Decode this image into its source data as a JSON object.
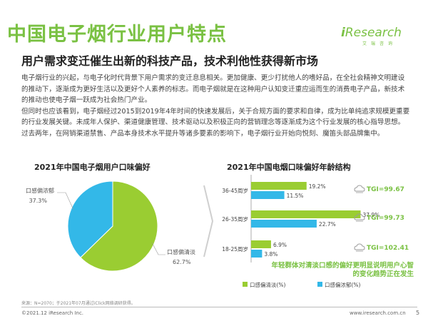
{
  "header": {
    "title": "中国电子烟行业用户特点",
    "logo_text": "Research",
    "logo_sub": "艾瑞咨询"
  },
  "subtitle": "用户需求变迁催生出新的科技产品，技术利他性获得新市场",
  "body_paragraphs": [
    "电子烟行业的兴起，与电子化时代背景下用户需求的变迁息息相关。更加健康、更少打扰他人的嗜好品，在全社会精神文明建设的推动下，逐渐成为更好生活以及更好个人素养的标志。而电子烟就是在这种用户认知变迁重应运而生的消费电子产品，新技术的推动也使电子烟一跃成为社会热门产业。",
    "但同时也应该看到，电子烟经过2015到2019年4年时间的快速发展后，关于合规方面的要求和自律，成为比单纯追求规模更重要的行业发展关键。未成年人保护、渠道健康管理、技术驱动以及积极正向的营销理念等逐渐成为这个行业发展的核心指导思想。过去两年，在网销渠道禁售、产品本身技术水平提升等诸多要素的影响下，电子烟行业开始向悦刻、魔笛头部品牌集中。"
  ],
  "colors": {
    "green": "#9acd32",
    "blue": "#33b8e8",
    "title_green": "#7ac143"
  },
  "chart_data": [
    {
      "type": "pie",
      "title": "2021年中国电子烟用户口味偏好",
      "slices": [
        {
          "name": "口感偏清淡",
          "value": 62.7,
          "label": "62.7%",
          "color": "#9acd32"
        },
        {
          "name": "口感偏浓郁",
          "value": 37.3,
          "label": "37.3%",
          "color": "#33b8e8"
        }
      ]
    },
    {
      "type": "bar",
      "orientation": "horizontal",
      "title": "2021年中国电烟口味偏好年龄结构",
      "categories": [
        "36-45周岁",
        "26-35周岁",
        "18-25周岁"
      ],
      "series": [
        {
          "name": "口感偏清淡(%)",
          "color": "#9acd32",
          "values": [
            19.2,
            37.9,
            6.9
          ],
          "labels": [
            "19.2%",
            "37.9%",
            "6.9%"
          ]
        },
        {
          "name": "口感偏浓郁(%)",
          "color": "#33b8e8",
          "values": [
            11.5,
            22.7,
            3.8
          ],
          "labels": [
            "11.5%",
            "22.7%",
            "3.8%"
          ]
        }
      ],
      "tgi": [
        "TGI=99.67",
        "TGI=99.73",
        "TGI=102.41"
      ]
    }
  ],
  "note": "年轻群体对清淡口感的偏好更明显说明用户心智的变化趋势正在发生",
  "source": "来源：N=2070；于2021年07月通过iClick网络调研获得。",
  "footer": {
    "copyright": "©2021.12 iResearch Inc.",
    "url": "www.iresearch.com.cn",
    "page": "5"
  }
}
